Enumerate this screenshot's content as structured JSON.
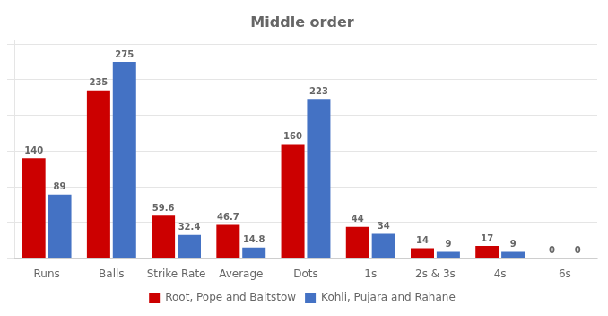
{
  "chart_data": {
    "type": "bar",
    "title": "Middle order",
    "categories": [
      "Runs",
      "Balls",
      "Strike Rate",
      "Average",
      "Dots",
      "1s",
      "2s & 3s",
      "4s",
      "6s"
    ],
    "series": [
      {
        "name": "Root, Pope and Baitstow",
        "color": "#cc0000",
        "values": [
          140,
          235,
          59.6,
          46.7,
          160,
          44,
          14,
          17,
          0
        ]
      },
      {
        "name": "Kohli, Pujara and Rahane",
        "color": "#4472c4",
        "values": [
          89,
          275,
          32.4,
          14.8,
          223,
          34,
          9,
          9,
          0
        ]
      }
    ],
    "ylim": [
      0,
      305
    ],
    "yticks": [
      0,
      50,
      100,
      150,
      200,
      250,
      300
    ],
    "grid": true,
    "legend": "bottom",
    "data_labels": true,
    "tick_labels": "x"
  }
}
